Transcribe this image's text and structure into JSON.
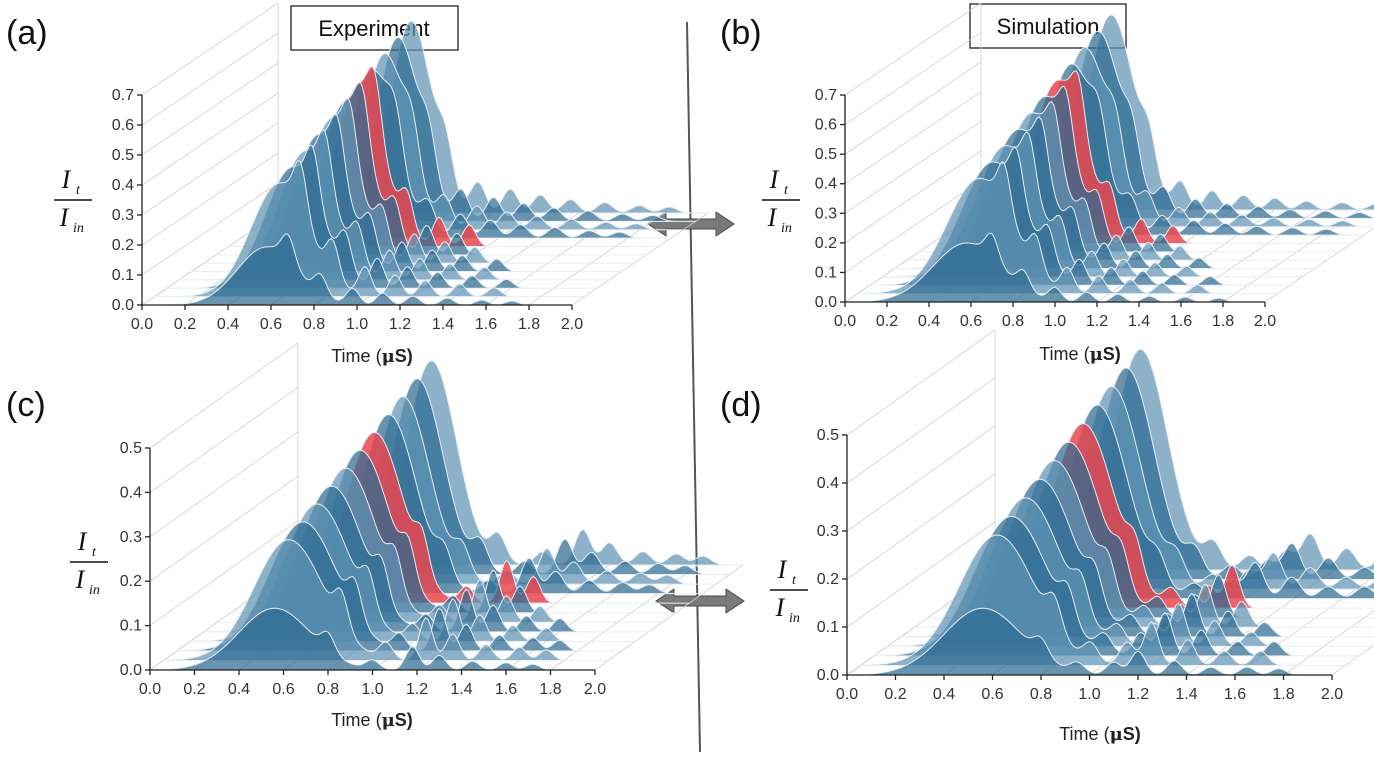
{
  "column_titles": {
    "left": "Experiment",
    "right": "Simulation"
  },
  "chart_data": [
    {
      "panel": "(a)",
      "type": "area",
      "ylabel_numerator": "I",
      "ylabel_numerator_sub": "t",
      "ylabel_denominator": "I",
      "ylabel_denominator_sub": "in",
      "xlabel": "Time (",
      "xlabel_unit": "μ",
      "xlabel_end": "S)",
      "x_ticks": [
        "0.0",
        "0.2",
        "0.4",
        "0.6",
        "0.8",
        "1.0",
        "1.2",
        "1.4",
        "1.6",
        "1.8",
        "2.0"
      ],
      "y_ticks": [
        "0.0",
        "0.1",
        "0.2",
        "0.3",
        "0.4",
        "0.5",
        "0.6",
        "0.7"
      ],
      "xlim": [
        0,
        2.0
      ],
      "ylim": [
        0,
        0.7
      ],
      "input_pulse": {
        "center": 0.62,
        "width": 0.12,
        "peak": 0.64
      },
      "highlighted_slice": 4,
      "transmitted_peaks": [
        {
          "x": 0.68,
          "y": 0.26
        },
        {
          "x": 0.83,
          "y": 0.2
        },
        {
          "x": 0.98,
          "y": 0.16
        },
        {
          "x": 1.12,
          "y": 0.12
        },
        {
          "x": 1.26,
          "y": 0.09
        },
        {
          "x": 1.42,
          "y": 0.07
        },
        {
          "x": 1.58,
          "y": 0.05
        },
        {
          "x": 1.72,
          "y": 0.04
        }
      ]
    },
    {
      "panel": "(b)",
      "type": "area",
      "ylabel_numerator": "I",
      "ylabel_numerator_sub": "t",
      "ylabel_denominator": "I",
      "ylabel_denominator_sub": "in",
      "xlabel": "Time (",
      "xlabel_unit": "μ",
      "xlabel_end": "S)",
      "x_ticks": [
        "0.0",
        "0.2",
        "0.4",
        "0.6",
        "0.8",
        "1.0",
        "1.2",
        "1.4",
        "1.6",
        "1.8",
        "2.0"
      ],
      "y_ticks": [
        "0.0",
        "0.1",
        "0.2",
        "0.3",
        "0.4",
        "0.5",
        "0.6",
        "0.7"
      ],
      "xlim": [
        0,
        2.0
      ],
      "ylim": [
        0,
        0.7
      ],
      "input_pulse": {
        "center": 0.62,
        "width": 0.14,
        "peak": 0.66
      },
      "highlighted_slice": 4,
      "transmitted_peaks": [
        {
          "x": 0.7,
          "y": 0.24
        },
        {
          "x": 0.85,
          "y": 0.18
        },
        {
          "x": 1.0,
          "y": 0.13
        },
        {
          "x": 1.15,
          "y": 0.1
        },
        {
          "x": 1.3,
          "y": 0.08
        },
        {
          "x": 1.45,
          "y": 0.06
        },
        {
          "x": 1.62,
          "y": 0.05
        },
        {
          "x": 1.78,
          "y": 0.04
        }
      ]
    },
    {
      "panel": "(c)",
      "type": "area",
      "ylabel_numerator": "I",
      "ylabel_numerator_sub": "t",
      "ylabel_denominator": "I",
      "ylabel_denominator_sub": "in",
      "xlabel": "Time (",
      "xlabel_unit": "μ",
      "xlabel_end": "S)",
      "x_ticks": [
        "0.0",
        "0.2",
        "0.4",
        "0.6",
        "0.8",
        "1.0",
        "1.2",
        "1.4",
        "1.6",
        "1.8",
        "2.0"
      ],
      "y_ticks": [
        "0.0",
        "0.1",
        "0.2",
        "0.3",
        "0.4",
        "0.5"
      ],
      "xlim": [
        0,
        2.0
      ],
      "ylim": [
        0,
        0.5
      ],
      "input_pulse": {
        "center": 0.6,
        "width": 0.14,
        "peak": 0.46
      },
      "highlighted_slice": 4,
      "transmitted_peaks": [
        {
          "x": 0.8,
          "y": 0.12
        },
        {
          "x": 1.0,
          "y": 0.06
        },
        {
          "x": 1.18,
          "y": 0.16
        },
        {
          "x": 1.3,
          "y": 0.1
        },
        {
          "x": 1.45,
          "y": 0.06
        },
        {
          "x": 1.6,
          "y": 0.05
        },
        {
          "x": 1.72,
          "y": 0.04
        }
      ]
    },
    {
      "panel": "(d)",
      "type": "area",
      "ylabel_numerator": "I",
      "ylabel_numerator_sub": "t",
      "ylabel_denominator": "I",
      "ylabel_denominator_sub": "in",
      "xlabel": "Time (",
      "xlabel_unit": "μ",
      "xlabel_end": "S)",
      "x_ticks": [
        "0.0",
        "0.2",
        "0.4",
        "0.6",
        "0.8",
        "1.0",
        "1.2",
        "1.4",
        "1.6",
        "1.8",
        "2.0"
      ],
      "y_ticks": [
        "0.0",
        "0.1",
        "0.2",
        "0.3",
        "0.4",
        "0.5"
      ],
      "xlim": [
        0,
        2.0
      ],
      "ylim": [
        0,
        0.5
      ],
      "input_pulse": {
        "center": 0.6,
        "width": 0.14,
        "peak": 0.46
      },
      "highlighted_slice": 4,
      "transmitted_peaks": [
        {
          "x": 0.8,
          "y": 0.1
        },
        {
          "x": 0.95,
          "y": 0.06
        },
        {
          "x": 1.1,
          "y": 0.08
        },
        {
          "x": 1.2,
          "y": 0.15
        },
        {
          "x": 1.35,
          "y": 0.09
        },
        {
          "x": 1.5,
          "y": 0.05
        },
        {
          "x": 1.65,
          "y": 0.05
        },
        {
          "x": 1.78,
          "y": 0.04
        }
      ]
    }
  ],
  "colors": {
    "fill": "#2e6b92",
    "fill_light": "#5f93b3",
    "highlight": "#e8474f",
    "edge": "#e6eef4"
  }
}
